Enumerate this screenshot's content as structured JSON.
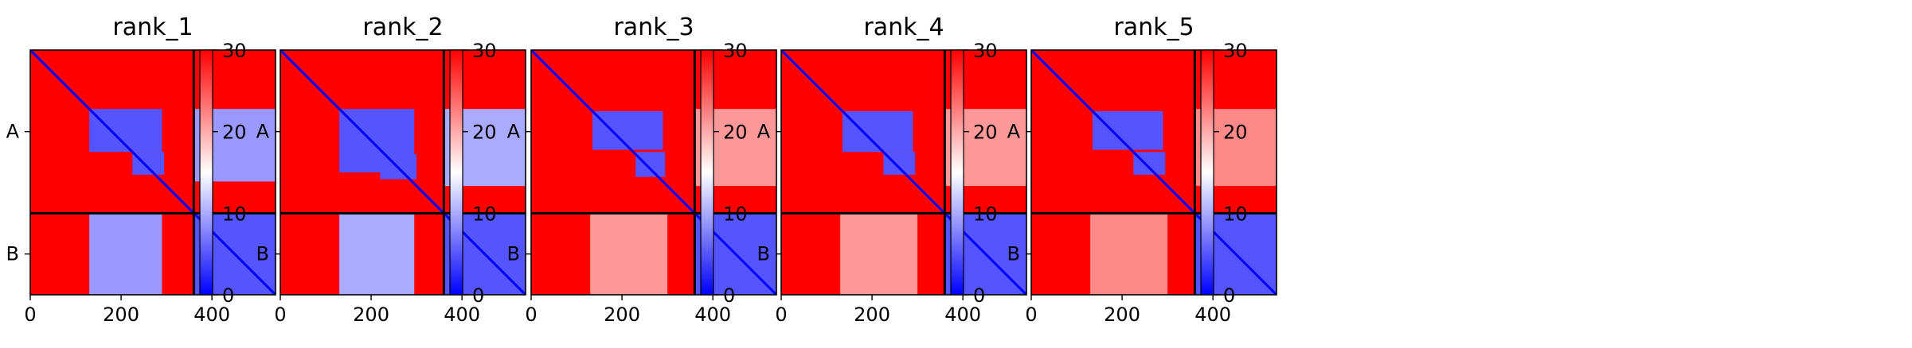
{
  "figure": {
    "panels": [
      {
        "title": "rank_1"
      },
      {
        "title": "rank_2"
      },
      {
        "title": "rank_3"
      },
      {
        "title": "rank_4"
      },
      {
        "title": "rank_5"
      }
    ]
  },
  "chart_data": [
    {
      "type": "heatmap",
      "title": "rank_1",
      "xlabel": "",
      "ylabel": "",
      "xlim": [
        0,
        540
      ],
      "x_ticks": [
        0,
        200,
        400
      ],
      "y_tick_labels": [
        "A",
        "B"
      ],
      "chain_boundary": 360,
      "colorbar": {
        "colormap": "bwr",
        "range": [
          0,
          30
        ],
        "ticks": [
          0,
          10,
          20,
          30
        ]
      },
      "colors": {
        "low": "#0000ff",
        "mid": "#ffffff",
        "high": "#ff0000"
      },
      "regions": [
        {
          "x": [
            0,
            360
          ],
          "y": [
            0,
            360
          ],
          "value": 30
        },
        {
          "x": [
            360,
            540
          ],
          "y": [
            360,
            540
          ],
          "value": 5
        },
        {
          "x": [
            130,
            290
          ],
          "y": [
            130,
            225
          ],
          "value": 5
        },
        {
          "x": [
            225,
            295
          ],
          "y": [
            225,
            275
          ],
          "value": 5
        },
        {
          "x": [
            360,
            540
          ],
          "y": [
            130,
            290
          ],
          "value": 9
        },
        {
          "x": [
            130,
            290
          ],
          "y": [
            360,
            540
          ],
          "value": 9
        }
      ]
    },
    {
      "type": "heatmap",
      "title": "rank_2",
      "xlabel": "",
      "ylabel": "",
      "xlim": [
        0,
        540
      ],
      "x_ticks": [
        0,
        200,
        400
      ],
      "y_tick_labels": [
        "A",
        "B"
      ],
      "chain_boundary": 360,
      "colorbar": {
        "colormap": "bwr",
        "range": [
          0,
          30
        ],
        "ticks": [
          0,
          10,
          20,
          30
        ]
      },
      "colors": {
        "low": "#0000ff",
        "mid": "#ffffff",
        "high": "#ff0000"
      },
      "regions": [
        {
          "x": [
            0,
            360
          ],
          "y": [
            0,
            360
          ],
          "value": 30
        },
        {
          "x": [
            360,
            540
          ],
          "y": [
            360,
            540
          ],
          "value": 5
        },
        {
          "x": [
            130,
            295
          ],
          "y": [
            130,
            270
          ],
          "value": 5
        },
        {
          "x": [
            220,
            300
          ],
          "y": [
            230,
            285
          ],
          "value": 5
        },
        {
          "x": [
            360,
            540
          ],
          "y": [
            130,
            300
          ],
          "value": 10
        },
        {
          "x": [
            130,
            295
          ],
          "y": [
            360,
            540
          ],
          "value": 10
        }
      ]
    },
    {
      "type": "heatmap",
      "title": "rank_3",
      "xlabel": "",
      "ylabel": "",
      "xlim": [
        0,
        540
      ],
      "x_ticks": [
        0,
        200,
        400
      ],
      "y_tick_labels": [
        "A",
        "B"
      ],
      "chain_boundary": 360,
      "colorbar": {
        "colormap": "bwr",
        "range": [
          0,
          30
        ],
        "ticks": [
          0,
          10,
          20,
          30
        ]
      },
      "colors": {
        "low": "#0000ff",
        "mid": "#ffffff",
        "high": "#ff0000"
      },
      "regions": [
        {
          "x": [
            0,
            360
          ],
          "y": [
            0,
            360
          ],
          "value": 30
        },
        {
          "x": [
            360,
            540
          ],
          "y": [
            360,
            540
          ],
          "value": 5
        },
        {
          "x": [
            135,
            290
          ],
          "y": [
            135,
            220
          ],
          "value": 5
        },
        {
          "x": [
            230,
            295
          ],
          "y": [
            225,
            280
          ],
          "value": 5
        },
        {
          "x": [
            360,
            540
          ],
          "y": [
            130,
            300
          ],
          "value": 21
        },
        {
          "x": [
            130,
            300
          ],
          "y": [
            360,
            540
          ],
          "value": 21
        }
      ]
    },
    {
      "type": "heatmap",
      "title": "rank_4",
      "xlabel": "",
      "ylabel": "",
      "xlim": [
        0,
        540
      ],
      "x_ticks": [
        0,
        200,
        400
      ],
      "y_tick_labels": [
        "A",
        "B"
      ],
      "chain_boundary": 360,
      "colorbar": {
        "colormap": "bwr",
        "range": [
          0,
          30
        ],
        "ticks": [
          0,
          10,
          20,
          30
        ]
      },
      "colors": {
        "low": "#0000ff",
        "mid": "#ffffff",
        "high": "#ff0000"
      },
      "regions": [
        {
          "x": [
            0,
            360
          ],
          "y": [
            0,
            360
          ],
          "value": 30
        },
        {
          "x": [
            360,
            540
          ],
          "y": [
            360,
            540
          ],
          "value": 5
        },
        {
          "x": [
            135,
            290
          ],
          "y": [
            135,
            225
          ],
          "value": 5
        },
        {
          "x": [
            225,
            295
          ],
          "y": [
            225,
            275
          ],
          "value": 5
        },
        {
          "x": [
            360,
            540
          ],
          "y": [
            130,
            300
          ],
          "value": 21
        },
        {
          "x": [
            130,
            300
          ],
          "y": [
            360,
            540
          ],
          "value": 21
        }
      ]
    },
    {
      "type": "heatmap",
      "title": "rank_5",
      "xlabel": "",
      "ylabel": "",
      "xlim": [
        0,
        540
      ],
      "x_ticks": [
        0,
        200,
        400
      ],
      "y_tick_labels": [
        "A",
        "B"
      ],
      "chain_boundary": 360,
      "colorbar": {
        "colormap": "bwr",
        "range": [
          0,
          30
        ],
        "ticks": [
          0,
          10,
          20,
          30
        ]
      },
      "colors": {
        "low": "#0000ff",
        "mid": "#ffffff",
        "high": "#ff0000"
      },
      "regions": [
        {
          "x": [
            0,
            360
          ],
          "y": [
            0,
            360
          ],
          "value": 30
        },
        {
          "x": [
            360,
            540
          ],
          "y": [
            360,
            540
          ],
          "value": 5
        },
        {
          "x": [
            135,
            290
          ],
          "y": [
            135,
            220
          ],
          "value": 5
        },
        {
          "x": [
            225,
            295
          ],
          "y": [
            225,
            275
          ],
          "value": 5
        },
        {
          "x": [
            360,
            540
          ],
          "y": [
            130,
            300
          ],
          "value": 22
        },
        {
          "x": [
            130,
            300
          ],
          "y": [
            360,
            540
          ],
          "value": 22
        }
      ]
    }
  ]
}
